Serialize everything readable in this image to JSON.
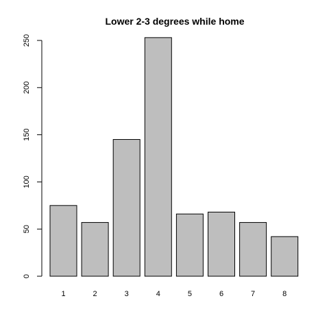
{
  "chart_data": {
    "type": "bar",
    "title": "Lower 2-3 degrees while home",
    "xlabel": "",
    "ylabel": "",
    "categories": [
      "1",
      "2",
      "3",
      "4",
      "5",
      "6",
      "7",
      "8"
    ],
    "values": [
      75,
      57,
      145,
      253,
      66,
      68,
      57,
      42
    ],
    "ylim": [
      0,
      260
    ],
    "yticks": [
      0,
      50,
      100,
      150,
      200,
      250
    ],
    "bar_color": "#bebebe",
    "grid": false,
    "legend": "none"
  }
}
